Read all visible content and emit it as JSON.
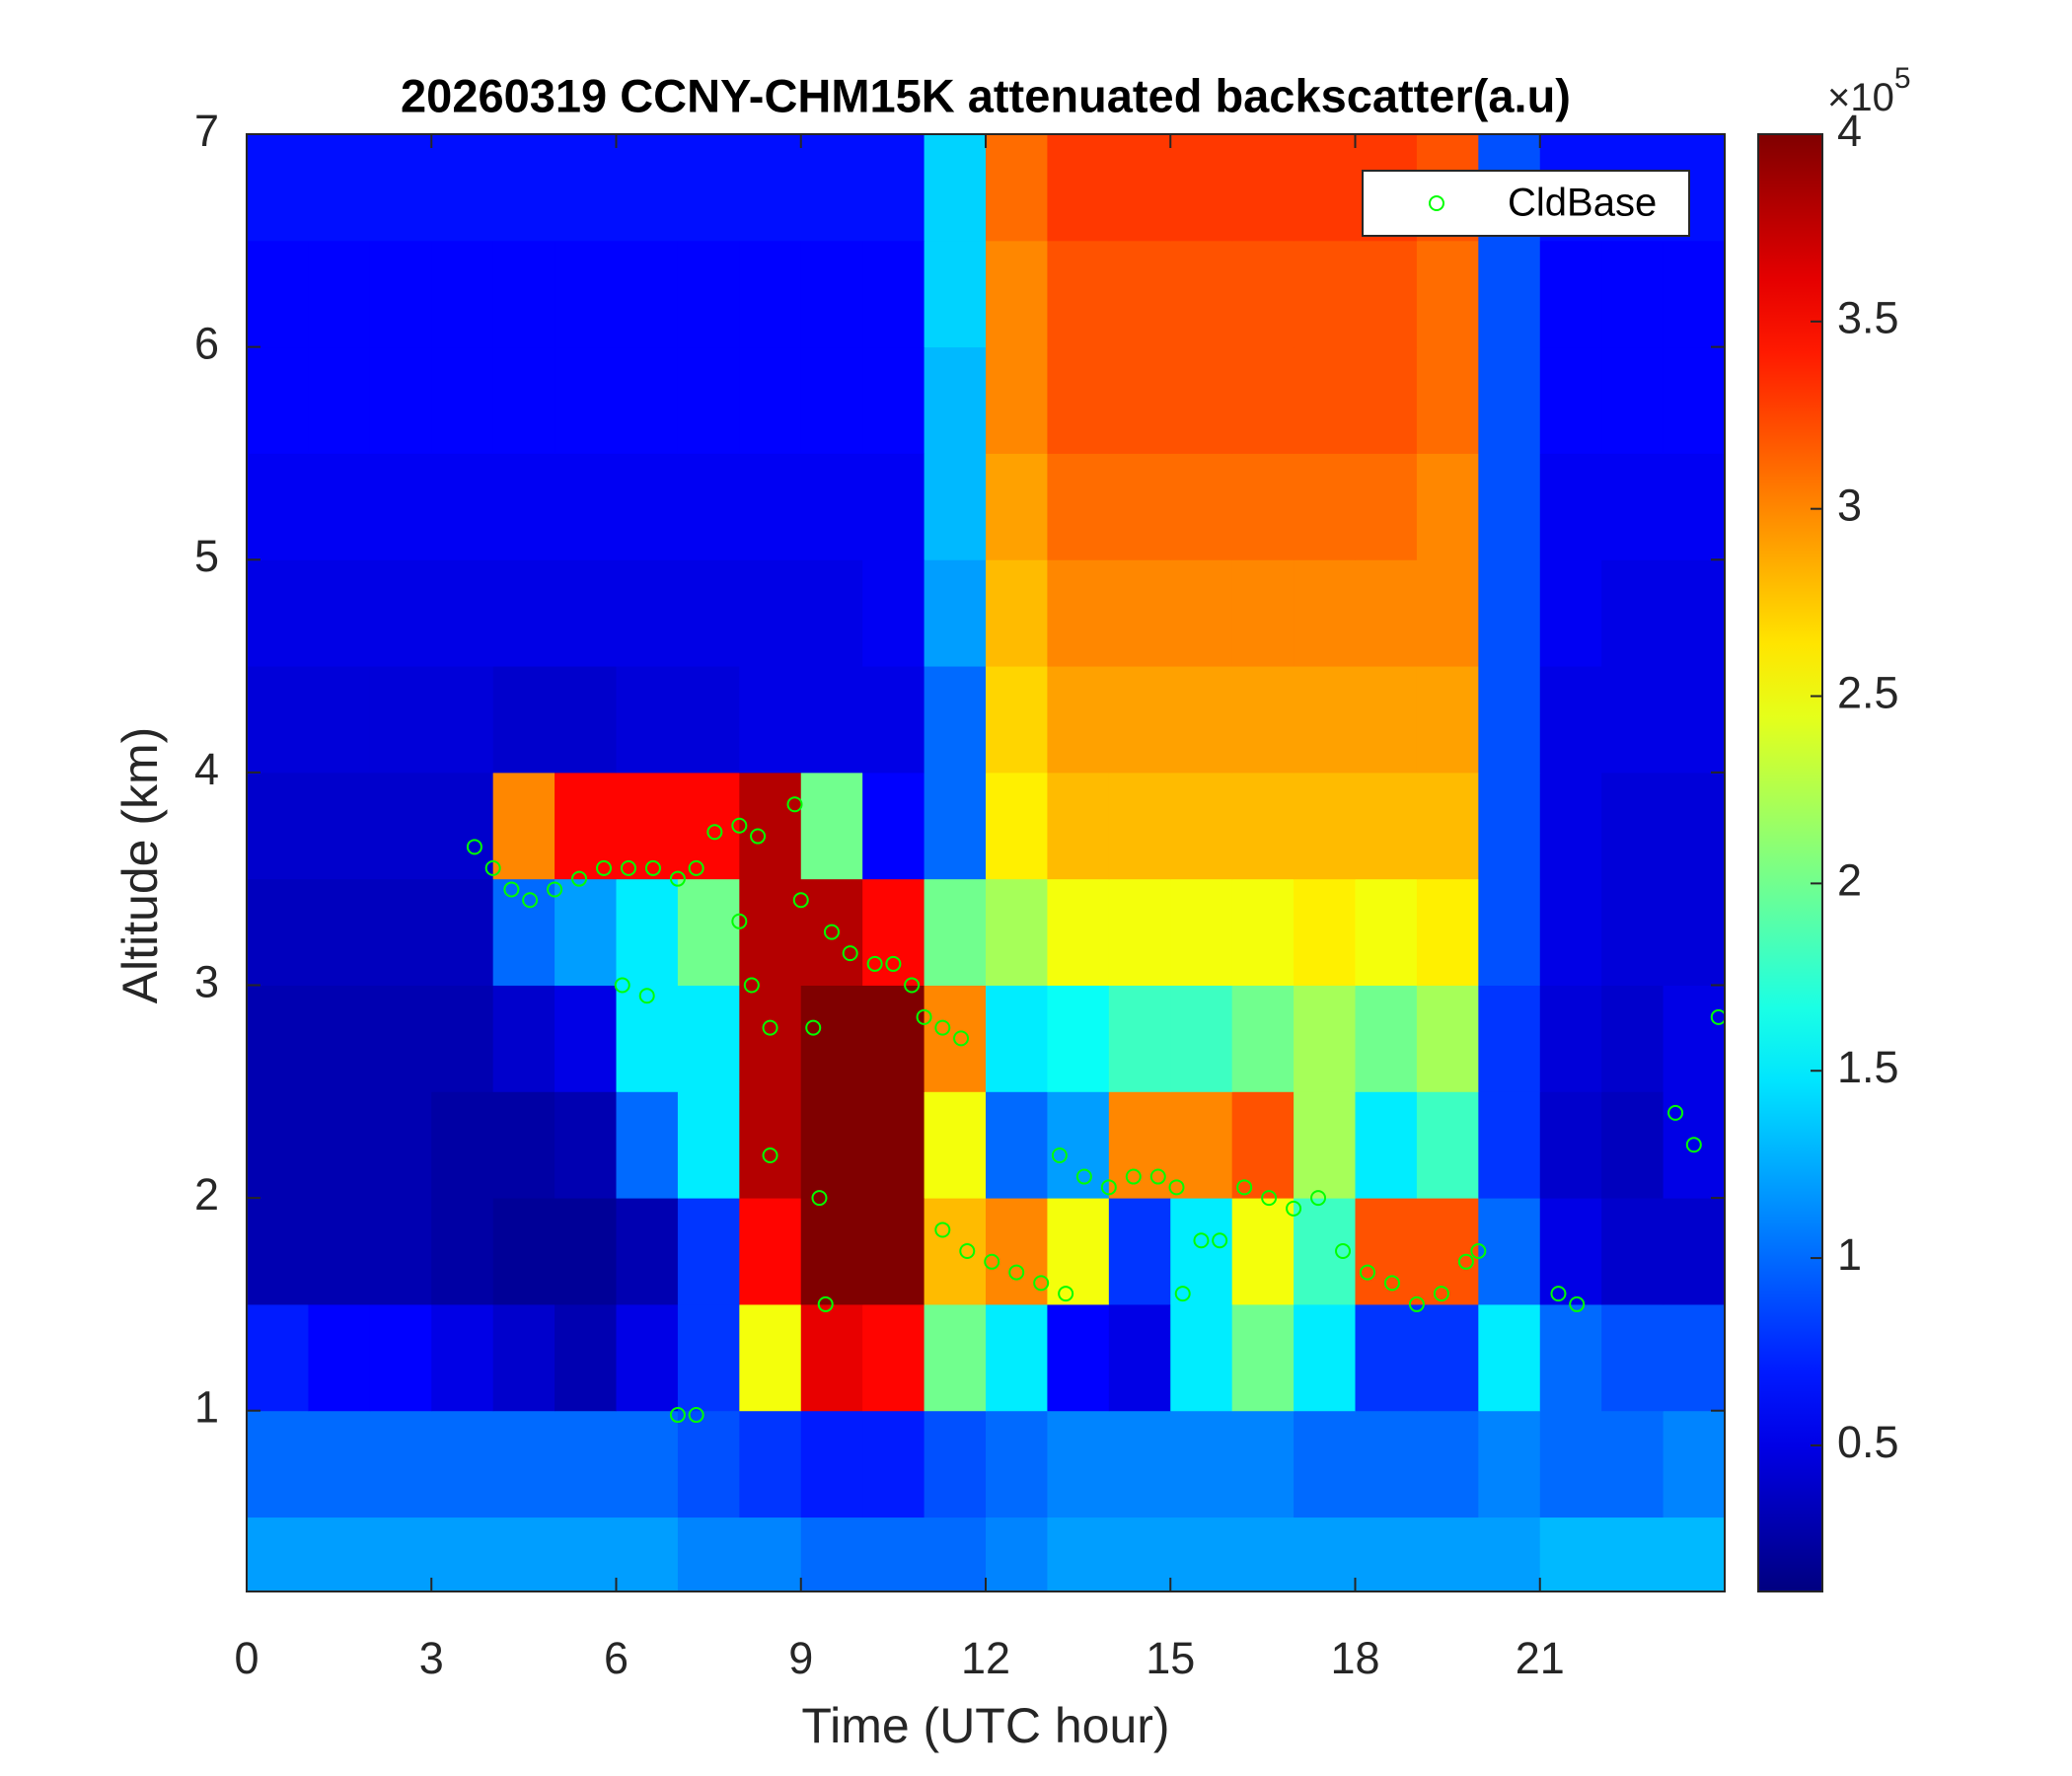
{
  "chart_data": {
    "type": "heatmap",
    "title": "20260319 CCNY-CHM15K attenuated backscatter(a.u)",
    "x_label": "Time (UTC hour)",
    "y_label": "Altitude (km)",
    "xlim": [
      0,
      24
    ],
    "ylim": [
      0.15,
      7
    ],
    "xticks": [
      0,
      3,
      6,
      9,
      12,
      15,
      18,
      21
    ],
    "yticks": [
      1,
      2,
      3,
      4,
      5,
      6,
      7
    ],
    "colormap": "jet",
    "clim": [
      0.11,
      4
    ],
    "cticks": [
      0.5,
      1,
      1.5,
      2,
      2.5,
      3,
      3.5,
      4
    ],
    "color_scale_multiplier": "×10",
    "color_scale_exponent": "5",
    "x": [
      0.5,
      1.5,
      2.5,
      3.5,
      4.5,
      5.5,
      6.5,
      7.5,
      8.5,
      9.5,
      10.5,
      11.5,
      12.5,
      13.5,
      14.5,
      15.5,
      16.5,
      17.5,
      18.5,
      19.5,
      20.5,
      21.5,
      22.5,
      23.5
    ],
    "y": [
      0.25,
      0.75,
      1.25,
      1.75,
      2.25,
      2.75,
      3.25,
      3.75,
      4.25,
      4.75,
      5.25,
      5.75,
      6.25,
      6.75
    ],
    "z": [
      [
        1.2,
        1.2,
        1.2,
        1.2,
        1.2,
        1.2,
        1.2,
        1.1,
        1.1,
        1.0,
        1.0,
        1.0,
        1.1,
        1.2,
        1.2,
        1.2,
        1.2,
        1.2,
        1.2,
        1.2,
        1.2,
        1.3,
        1.3,
        1.3
      ],
      [
        1.0,
        1.0,
        1.0,
        1.0,
        1.0,
        1.0,
        1.0,
        0.9,
        0.8,
        0.7,
        0.7,
        0.9,
        1.0,
        1.1,
        1.1,
        1.1,
        1.1,
        1.0,
        1.0,
        1.0,
        1.1,
        1.0,
        1.0,
        1.1
      ],
      [
        0.7,
        0.6,
        0.6,
        0.5,
        0.4,
        0.3,
        0.5,
        0.8,
        2.5,
        3.6,
        3.5,
        2.0,
        1.5,
        0.6,
        0.5,
        1.5,
        2.0,
        1.5,
        0.8,
        0.8,
        1.5,
        1.0,
        0.9,
        0.9
      ],
      [
        0.3,
        0.3,
        0.3,
        0.25,
        0.2,
        0.2,
        0.3,
        0.8,
        3.5,
        4,
        4,
        2.8,
        3.0,
        2.5,
        0.8,
        1.5,
        2.5,
        1.8,
        3.2,
        3.2,
        1.0,
        0.5,
        0.4,
        0.4
      ],
      [
        0.3,
        0.3,
        0.3,
        0.25,
        0.25,
        0.3,
        1.0,
        1.5,
        3.8,
        4,
        4,
        2.5,
        1.0,
        1.2,
        3.0,
        3.0,
        3.2,
        2.2,
        1.5,
        1.8,
        0.8,
        0.4,
        0.35,
        0.5
      ],
      [
        0.3,
        0.3,
        0.3,
        0.3,
        0.4,
        0.5,
        1.5,
        1.5,
        3.8,
        4,
        4,
        3.0,
        1.5,
        1.6,
        1.8,
        1.8,
        2.0,
        2.2,
        2.0,
        2.2,
        0.8,
        0.45,
        0.4,
        0.5
      ],
      [
        0.35,
        0.35,
        0.35,
        0.35,
        1.0,
        1.2,
        1.5,
        2.0,
        3.8,
        3.8,
        3.5,
        2.0,
        2.2,
        2.5,
        2.5,
        2.5,
        2.5,
        2.6,
        2.5,
        2.6,
        0.9,
        0.5,
        0.45,
        0.45
      ],
      [
        0.4,
        0.4,
        0.4,
        0.4,
        3.0,
        3.5,
        3.5,
        3.5,
        3.8,
        2.0,
        0.6,
        1.0,
        2.6,
        2.8,
        2.8,
        2.8,
        2.8,
        2.8,
        2.8,
        2.8,
        0.9,
        0.5,
        0.45,
        0.45
      ],
      [
        0.45,
        0.45,
        0.45,
        0.45,
        0.4,
        0.4,
        0.45,
        0.45,
        0.5,
        0.5,
        0.5,
        1.0,
        2.7,
        2.9,
        2.9,
        2.9,
        2.9,
        2.9,
        2.9,
        2.9,
        0.9,
        0.5,
        0.5,
        0.5
      ],
      [
        0.5,
        0.5,
        0.5,
        0.5,
        0.5,
        0.5,
        0.5,
        0.5,
        0.5,
        0.5,
        0.55,
        1.2,
        2.8,
        3.0,
        3.0,
        3.0,
        3.0,
        3.0,
        3.0,
        3.0,
        0.9,
        0.55,
        0.5,
        0.5
      ],
      [
        0.55,
        0.55,
        0.55,
        0.55,
        0.55,
        0.55,
        0.55,
        0.55,
        0.55,
        0.55,
        0.55,
        1.3,
        2.9,
        3.1,
        3.1,
        3.1,
        3.1,
        3.1,
        3.1,
        3.0,
        0.9,
        0.55,
        0.55,
        0.55
      ],
      [
        0.6,
        0.6,
        0.6,
        0.6,
        0.6,
        0.6,
        0.6,
        0.6,
        0.6,
        0.6,
        0.6,
        1.3,
        3.0,
        3.2,
        3.2,
        3.2,
        3.2,
        3.2,
        3.2,
        3.1,
        0.9,
        0.6,
        0.6,
        0.6
      ],
      [
        0.6,
        0.6,
        0.6,
        0.6,
        0.6,
        0.6,
        0.6,
        0.6,
        0.6,
        0.6,
        0.6,
        1.4,
        3.0,
        3.2,
        3.2,
        3.2,
        3.2,
        3.2,
        3.2,
        3.1,
        0.9,
        0.6,
        0.6,
        0.6
      ],
      [
        0.65,
        0.65,
        0.65,
        0.65,
        0.65,
        0.65,
        0.65,
        0.65,
        0.65,
        0.65,
        0.65,
        1.4,
        3.1,
        3.3,
        3.3,
        3.3,
        3.3,
        3.3,
        3.3,
        3.2,
        0.9,
        0.65,
        0.65,
        0.65
      ]
    ],
    "legend": "upper right",
    "series": [
      {
        "name": "CldBase",
        "type": "scatter",
        "color": "#00ff00",
        "x": [
          3.7,
          4.0,
          4.3,
          4.6,
          5.0,
          5.4,
          5.8,
          6.2,
          6.6,
          7.0,
          7.3,
          7.6,
          8.0,
          8.3,
          8.0,
          8.2,
          8.5,
          8.5,
          8.9,
          9.0,
          9.2,
          9.3,
          9.4,
          9.5,
          9.8,
          10.2,
          10.5,
          10.8,
          11.0,
          11.3,
          11.6,
          11.3,
          11.7,
          12.1,
          12.5,
          12.9,
          13.3,
          13.2,
          13.6,
          14.0,
          14.4,
          14.8,
          15.1,
          15.5,
          15.8,
          16.2,
          16.6,
          17.0,
          17.4,
          17.8,
          18.2,
          18.6,
          19.0,
          19.4,
          19.8,
          20.0,
          21.3,
          21.6,
          23.2,
          23.5,
          23.9,
          6.1,
          6.5,
          7.0,
          7.3,
          15.2
        ],
        "values": [
          3.65,
          3.55,
          3.45,
          3.4,
          3.45,
          3.5,
          3.55,
          3.55,
          3.55,
          3.5,
          3.55,
          3.72,
          3.75,
          3.7,
          3.3,
          3.0,
          2.8,
          2.2,
          3.85,
          3.4,
          2.8,
          2.0,
          1.5,
          3.25,
          3.15,
          3.1,
          3.1,
          3.0,
          2.85,
          2.8,
          2.75,
          1.85,
          1.75,
          1.7,
          1.65,
          1.6,
          1.55,
          2.2,
          2.1,
          2.05,
          2.1,
          2.1,
          2.05,
          1.8,
          1.8,
          2.05,
          2.0,
          1.95,
          2.0,
          1.75,
          1.65,
          1.6,
          1.5,
          1.55,
          1.7,
          1.75,
          1.55,
          1.5,
          2.4,
          2.25,
          2.85,
          3.0,
          2.95,
          0.98,
          0.98,
          1.55
        ]
      }
    ]
  }
}
